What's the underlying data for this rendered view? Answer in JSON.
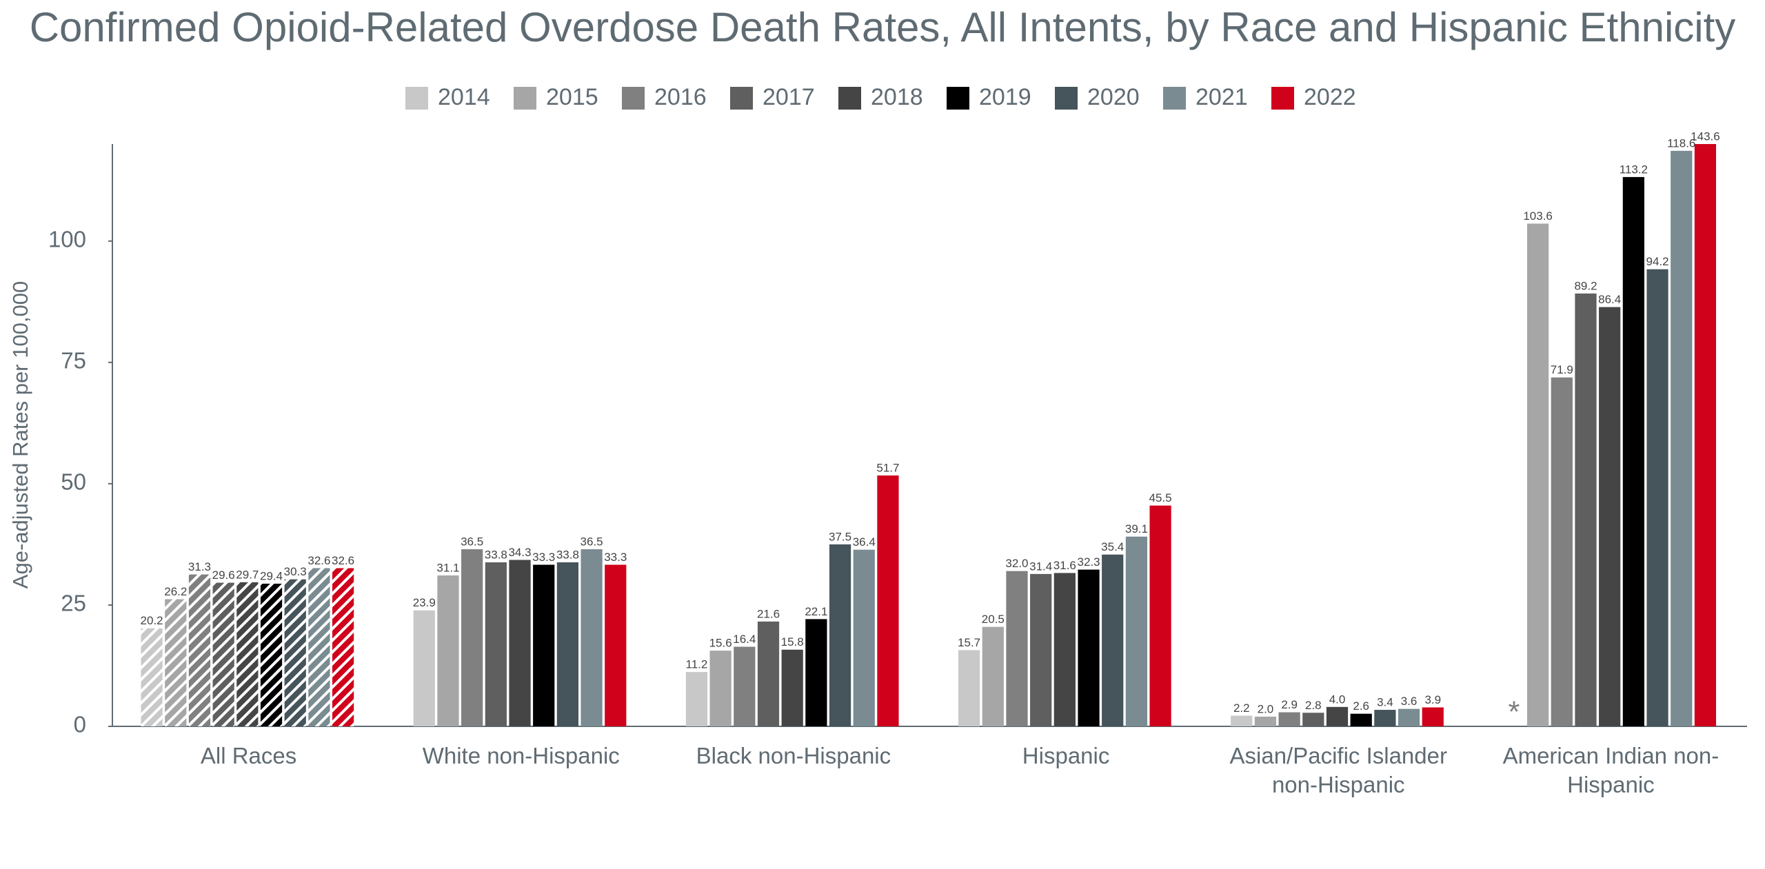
{
  "chart_data": {
    "type": "bar",
    "title": "Confirmed Opioid-Related Overdose Death Rates, All Intents, by Race and Hispanic Ethnicity",
    "y_label": "Age-adjusted Rates per 100,000",
    "categories": [
      "All Races",
      "White non-Hispanic",
      "Black non-Hispanic",
      "Hispanic",
      "Asian/Pacific Islander non-Hispanic",
      "American Indian non-Hispanic"
    ],
    "pattern": [
      "hatched",
      "solid",
      "solid",
      "solid",
      "solid",
      "solid"
    ],
    "ylim": [
      0,
      120
    ],
    "yticks": [
      0,
      25,
      50,
      75,
      100
    ],
    "grid": false,
    "legend": "top",
    "series": [
      {
        "name": "2014",
        "color": "#c8c8c8",
        "values": [
          20.2,
          23.9,
          11.2,
          15.7,
          2.2,
          null
        ],
        "value_labels": [
          "20.2",
          "23.9",
          "11.2",
          "15.7",
          "2.2",
          "*"
        ]
      },
      {
        "name": "2015",
        "color": "#a6a6a6",
        "values": [
          26.2,
          31.1,
          15.6,
          20.5,
          2.0,
          103.6
        ],
        "value_labels": [
          "26.2",
          "31.1",
          "15.6",
          "20.5",
          "2.0",
          "103.6"
        ]
      },
      {
        "name": "2016",
        "color": "#808080",
        "values": [
          31.3,
          36.5,
          16.4,
          32.0,
          2.9,
          71.9
        ],
        "value_labels": [
          "31.3",
          "36.5",
          "16.4",
          "32.0",
          "2.9",
          "71.9"
        ]
      },
      {
        "name": "2017",
        "color": "#5f5f5f",
        "values": [
          29.6,
          33.8,
          21.6,
          31.4,
          2.8,
          89.2
        ],
        "value_labels": [
          "29.6",
          "33.8",
          "21.6",
          "31.4",
          "2.8",
          "89.2"
        ]
      },
      {
        "name": "2018",
        "color": "#454545",
        "values": [
          29.7,
          34.3,
          15.8,
          31.6,
          4.0,
          86.4
        ],
        "value_labels": [
          "29.7",
          "34.3",
          "15.8",
          "31.6",
          "4.0",
          "86.4"
        ]
      },
      {
        "name": "2019",
        "color": "#000000",
        "values": [
          29.4,
          33.3,
          22.1,
          32.3,
          2.6,
          113.2
        ],
        "value_labels": [
          "29.4",
          "33.3",
          "22.1",
          "32.3",
          "2.6",
          "113.2"
        ]
      },
      {
        "name": "2020",
        "color": "#46545b",
        "values": [
          30.3,
          33.8,
          37.5,
          35.4,
          3.4,
          94.2
        ],
        "value_labels": [
          "30.3",
          "33.8",
          "37.5",
          "35.4",
          "3.4",
          "94.2"
        ]
      },
      {
        "name": "2021",
        "color": "#7a8c91",
        "values": [
          32.6,
          36.5,
          36.4,
          39.1,
          3.6,
          118.6
        ],
        "value_labels": [
          "32.6",
          "36.5",
          "36.4",
          "39.1",
          "3.6",
          "118.6"
        ]
      },
      {
        "name": "2022",
        "color": "#d0021b",
        "values": [
          32.6,
          33.3,
          51.7,
          45.5,
          3.9,
          143.6
        ],
        "value_labels": [
          "32.6",
          "33.3",
          "51.7",
          "45.5",
          "3.9",
          "143.6"
        ]
      }
    ]
  }
}
